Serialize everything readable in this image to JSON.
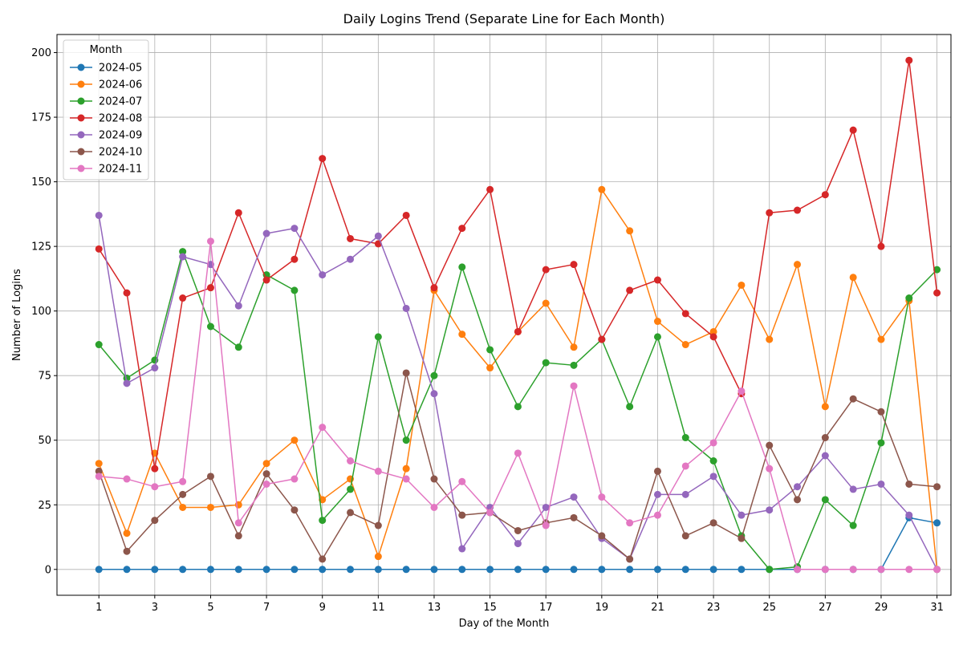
{
  "chart_data": {
    "type": "line",
    "title": "Daily Logins Trend (Separate Line for Each Month)",
    "xlabel": "Day of the Month",
    "ylabel": "Number of Logins",
    "xlim": [
      -0.5,
      31.5
    ],
    "ylim": [
      -10,
      207
    ],
    "x_ticks": [
      1,
      3,
      5,
      7,
      9,
      11,
      13,
      15,
      17,
      19,
      21,
      23,
      25,
      27,
      29,
      31
    ],
    "y_ticks": [
      0,
      25,
      50,
      75,
      100,
      125,
      150,
      175,
      200
    ],
    "grid": true,
    "legend": {
      "title": "Month",
      "position": "upper-left"
    },
    "x": [
      1,
      2,
      3,
      4,
      5,
      6,
      7,
      8,
      9,
      10,
      11,
      12,
      13,
      14,
      15,
      16,
      17,
      18,
      19,
      20,
      21,
      22,
      23,
      24,
      25,
      26,
      27,
      28,
      29,
      30,
      31
    ],
    "series": [
      {
        "name": "2024-05",
        "color": "#1f77b4",
        "values": [
          0,
          0,
          0,
          0,
          0,
          0,
          0,
          0,
          0,
          0,
          0,
          0,
          0,
          0,
          0,
          0,
          0,
          0,
          0,
          0,
          0,
          0,
          0,
          0,
          0,
          0,
          0,
          0,
          0,
          20,
          18
        ]
      },
      {
        "name": "2024-06",
        "color": "#ff7f0e",
        "values": [
          41,
          14,
          45,
          24,
          24,
          25,
          41,
          50,
          27,
          35,
          5,
          39,
          108,
          91,
          78,
          92,
          103,
          86,
          147,
          131,
          96,
          87,
          92,
          110,
          89,
          118,
          63,
          113,
          89,
          104,
          0
        ]
      },
      {
        "name": "2024-07",
        "color": "#2ca02c",
        "values": [
          87,
          74,
          81,
          123,
          94,
          86,
          114,
          108,
          19,
          31,
          90,
          50,
          75,
          117,
          85,
          63,
          80,
          79,
          89,
          63,
          90,
          51,
          42,
          13,
          0,
          1,
          27,
          17,
          49,
          105,
          116
        ]
      },
      {
        "name": "2024-08",
        "color": "#d62728",
        "values": [
          124,
          107,
          39,
          105,
          109,
          138,
          112,
          120,
          159,
          128,
          126,
          137,
          109,
          132,
          147,
          92,
          116,
          118,
          89,
          108,
          112,
          99,
          90,
          68,
          138,
          139,
          145,
          170,
          125,
          197,
          107
        ]
      },
      {
        "name": "2024-09",
        "color": "#9467bd",
        "values": [
          137,
          72,
          78,
          121,
          118,
          102,
          130,
          132,
          114,
          120,
          129,
          101,
          68,
          8,
          24,
          10,
          24,
          28,
          12,
          4,
          29,
          29,
          36,
          21,
          23,
          32,
          44,
          31,
          33,
          21,
          0
        ]
      },
      {
        "name": "2024-10",
        "color": "#8c564b",
        "values": [
          38,
          7,
          19,
          29,
          36,
          13,
          37,
          23,
          4,
          22,
          17,
          76,
          35,
          21,
          22,
          15,
          18,
          20,
          13,
          4,
          38,
          13,
          18,
          12,
          48,
          27,
          51,
          66,
          61,
          33,
          32
        ]
      },
      {
        "name": "2024-11",
        "color": "#e377c2",
        "values": [
          36,
          35,
          32,
          34,
          127,
          18,
          33,
          35,
          55,
          42,
          38,
          35,
          24,
          34,
          22,
          45,
          17,
          71,
          28,
          18,
          21,
          40,
          49,
          69,
          39,
          0,
          0,
          0,
          0,
          0,
          0
        ]
      }
    ]
  }
}
